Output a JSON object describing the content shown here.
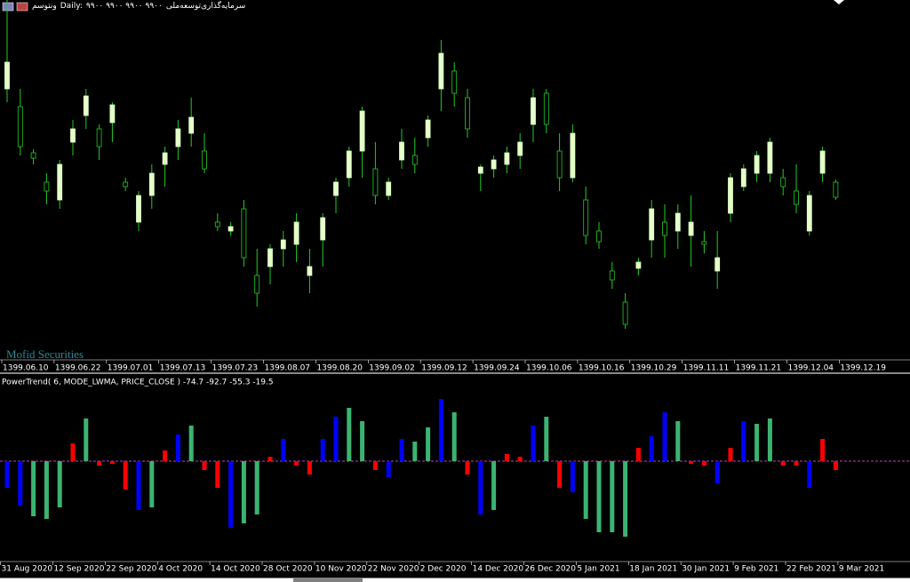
{
  "header": {
    "symbol": "ونتوسم",
    "period": "Daily:",
    "prices": "۹۹۰۰ ۹۹۰۰ ۹۹۰۰ ۹۹۰۰",
    "name": "سرمایه‌گذاری‌توسعه‌ملی"
  },
  "watermark": "Mofid Securities",
  "price_chart": {
    "type": "candlestick",
    "dates": [
      "1399.06.10",
      "1399.06.22",
      "1399.07.01",
      "1399.07.13",
      "1399.07.23",
      "1399.08.07",
      "1399.08.20",
      "1399.09.02",
      "1399.09.12",
      "1399.09.24",
      "1399.10.06",
      "1399.10.16",
      "1399.10.29",
      "1399.11.11",
      "1399.11.21",
      "1399.12.04",
      "1399.12.19"
    ],
    "ylim": [
      0,
      400
    ],
    "color": "#22cc22",
    "up_fill": "#e4ffc8",
    "candles": [
      [
        300,
        400,
        285,
        330
      ],
      [
        280,
        300,
        225,
        235
      ],
      [
        228,
        232,
        215,
        222
      ],
      [
        195,
        205,
        170,
        185
      ],
      [
        175,
        220,
        165,
        215
      ],
      [
        240,
        265,
        225,
        255
      ],
      [
        270,
        300,
        255,
        292
      ],
      [
        255,
        260,
        220,
        235
      ],
      [
        262,
        285,
        240,
        282
      ],
      [
        195,
        200,
        185,
        190
      ],
      [
        150,
        185,
        140,
        180
      ],
      [
        180,
        215,
        165,
        205
      ],
      [
        215,
        235,
        190,
        228
      ],
      [
        235,
        265,
        220,
        255
      ],
      [
        250,
        290,
        235,
        268
      ],
      [
        230,
        250,
        205,
        210
      ],
      [
        150,
        160,
        140,
        145
      ],
      [
        140,
        150,
        135,
        145
      ],
      [
        165,
        175,
        100,
        110
      ],
      [
        90,
        120,
        55,
        70
      ],
      [
        100,
        125,
        80,
        120
      ],
      [
        120,
        140,
        100,
        130
      ],
      [
        125,
        160,
        105,
        150
      ],
      [
        90,
        120,
        70,
        100
      ],
      [
        130,
        160,
        100,
        155
      ],
      [
        180,
        200,
        160,
        195
      ],
      [
        200,
        235,
        190,
        230
      ],
      [
        230,
        280,
        200,
        275
      ],
      [
        210,
        240,
        170,
        180
      ],
      [
        180,
        200,
        175,
        195
      ],
      [
        220,
        255,
        210,
        240
      ],
      [
        225,
        245,
        205,
        215
      ],
      [
        245,
        270,
        235,
        265
      ],
      [
        300,
        355,
        275,
        340
      ],
      [
        320,
        330,
        280,
        295
      ],
      [
        290,
        300,
        245,
        255
      ],
      [
        205,
        215,
        185,
        212
      ],
      [
        210,
        225,
        200,
        220
      ],
      [
        215,
        235,
        205,
        228
      ],
      [
        225,
        250,
        210,
        240
      ],
      [
        260,
        300,
        240,
        290
      ],
      [
        295,
        300,
        250,
        260
      ],
      [
        230,
        250,
        185,
        200
      ],
      [
        200,
        260,
        195,
        250
      ],
      [
        175,
        190,
        125,
        135
      ],
      [
        140,
        150,
        120,
        128
      ],
      [
        95,
        105,
        75,
        85
      ],
      [
        60,
        70,
        30,
        35
      ],
      [
        98,
        110,
        90,
        105
      ],
      [
        130,
        175,
        110,
        165
      ],
      [
        150,
        170,
        110,
        135
      ],
      [
        140,
        170,
        120,
        160
      ],
      [
        135,
        180,
        100,
        150
      ],
      [
        128,
        140,
        115,
        125
      ],
      [
        95,
        140,
        75,
        110
      ],
      [
        160,
        205,
        150,
        200
      ],
      [
        190,
        215,
        185,
        210
      ],
      [
        205,
        230,
        195,
        225
      ],
      [
        205,
        245,
        195,
        240
      ],
      [
        200,
        210,
        180,
        190
      ],
      [
        185,
        215,
        160,
        170
      ],
      [
        140,
        185,
        135,
        180
      ],
      [
        205,
        235,
        195,
        230
      ],
      [
        195,
        198,
        175,
        178
      ]
    ]
  },
  "indicator": {
    "type": "bar",
    "label": "PowerTrend( 6, MODE_LWMA, PRICE_CLOSE ) -74.7 -92.7 -55.3 -19.5",
    "dates": [
      "31 Aug 2020",
      "12 Sep 2020",
      "22 Sep 2020",
      "4 Oct 2020",
      "14 Oct 2020",
      "28 Oct 2020",
      "10 Nov 2020",
      "22 Nov 2020",
      "2 Dec 2020",
      "14 Dec 2020",
      "26 Dec 2020",
      "5 Jan 2021",
      "18 Jan 2021",
      "30 Jan 2021",
      "9 Feb 2021",
      "22 Feb 2021",
      "9 Mar 2021"
    ],
    "ylim": [
      -100,
      100
    ],
    "zero_line_color": "#c040c0",
    "values": [
      -30,
      -50,
      -62,
      -65,
      -52,
      20,
      48,
      -5,
      -3,
      -32,
      -55,
      -52,
      12,
      30,
      40,
      -10,
      -30,
      -75,
      -70,
      -60,
      5,
      25,
      -5,
      -15,
      25,
      50,
      60,
      45,
      -10,
      -18,
      25,
      22,
      38,
      70,
      55,
      -15,
      -60,
      -55,
      8,
      5,
      40,
      50,
      -30,
      -35,
      -65,
      -80,
      -80,
      -85,
      15,
      28,
      55,
      45,
      -3,
      -5,
      -25,
      15,
      45,
      42,
      48,
      -5,
      -5,
      -30,
      25,
      -10
    ],
    "colors": [
      "#0000ff",
      "#0000ff",
      "#3cb371",
      "#3cb371",
      "#3cb371",
      "#ff0000",
      "#3cb371",
      "#ff0000",
      "#ff0000",
      "#ff0000",
      "#0000ff",
      "#3cb371",
      "#ff0000",
      "#0000ff",
      "#3cb371",
      "#ff0000",
      "#ff0000",
      "#0000ff",
      "#3cb371",
      "#3cb371",
      "#ff0000",
      "#0000ff",
      "#ff0000",
      "#ff0000",
      "#0000ff",
      "#0000ff",
      "#3cb371",
      "#3cb371",
      "#ff0000",
      "#0000ff",
      "#0000ff",
      "#3cb371",
      "#3cb371",
      "#0000ff",
      "#3cb371",
      "#ff0000",
      "#0000ff",
      "#3cb371",
      "#ff0000",
      "#ff0000",
      "#0000ff",
      "#3cb371",
      "#ff0000",
      "#0000ff",
      "#3cb371",
      "#3cb371",
      "#3cb371",
      "#3cb371",
      "#ff0000",
      "#0000ff",
      "#0000ff",
      "#3cb371",
      "#ff0000",
      "#ff0000",
      "#0000ff",
      "#ff0000",
      "#0000ff",
      "#3cb371",
      "#3cb371",
      "#ff0000",
      "#ff0000",
      "#0000ff",
      "#ff0000",
      "#ff0000"
    ]
  }
}
